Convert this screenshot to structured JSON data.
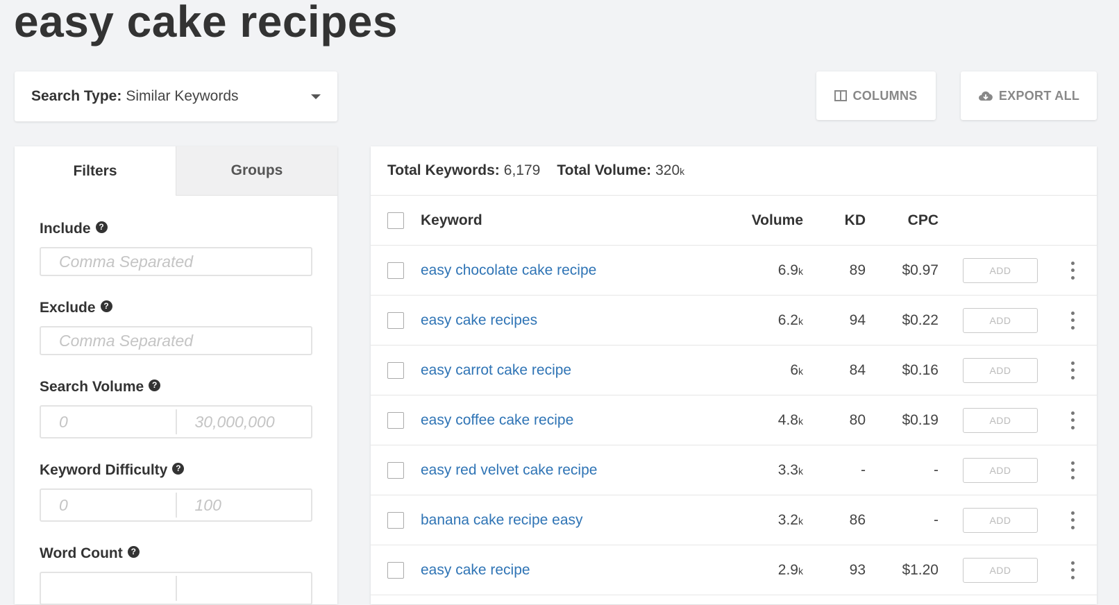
{
  "page": {
    "title": "easy cake recipes"
  },
  "search_type": {
    "label": "Search Type:",
    "value": "Similar Keywords"
  },
  "toolbar": {
    "columns_label": "COLUMNS",
    "export_label": "EXPORT ALL"
  },
  "sidebar": {
    "tabs": [
      {
        "label": "Filters"
      },
      {
        "label": "Groups"
      }
    ],
    "include": {
      "label": "Include",
      "placeholder": "Comma Separated"
    },
    "exclude": {
      "label": "Exclude",
      "placeholder": "Comma Separated"
    },
    "search_volume": {
      "label": "Search Volume",
      "min_placeholder": "0",
      "max_placeholder": "30,000,000"
    },
    "keyword_difficulty": {
      "label": "Keyword Difficulty",
      "min_placeholder": "0",
      "max_placeholder": "100"
    },
    "word_count": {
      "label": "Word Count"
    },
    "help_glyph": "?"
  },
  "summary": {
    "total_keywords_label": "Total Keywords:",
    "total_keywords_value": "6,179",
    "total_volume_label": "Total Volume:",
    "total_volume_value": "320",
    "total_volume_unit": "k"
  },
  "table": {
    "headers": {
      "keyword": "Keyword",
      "volume": "Volume",
      "kd": "KD",
      "cpc": "CPC"
    },
    "add_label": "ADD",
    "rows": [
      {
        "keyword": "easy chocolate cake recipe",
        "volume": "6.9",
        "unit": "k",
        "kd": "89",
        "cpc": "$0.97"
      },
      {
        "keyword": "easy cake recipes",
        "volume": "6.2",
        "unit": "k",
        "kd": "94",
        "cpc": "$0.22"
      },
      {
        "keyword": "easy carrot cake recipe",
        "volume": "6",
        "unit": "k",
        "kd": "84",
        "cpc": "$0.16"
      },
      {
        "keyword": "easy coffee cake recipe",
        "volume": "4.8",
        "unit": "k",
        "kd": "80",
        "cpc": "$0.19"
      },
      {
        "keyword": "easy red velvet cake recipe",
        "volume": "3.3",
        "unit": "k",
        "kd": "-",
        "cpc": "-"
      },
      {
        "keyword": "banana cake recipe easy",
        "volume": "3.2",
        "unit": "k",
        "kd": "86",
        "cpc": "-"
      },
      {
        "keyword": "easy cake recipe",
        "volume": "2.9",
        "unit": "k",
        "kd": "93",
        "cpc": "$1.20"
      }
    ]
  },
  "colors": {
    "link": "#2f74b5",
    "background": "#f2f3f5",
    "text": "#333333"
  },
  "icons": {
    "columns": "columns-icon",
    "export": "cloud-download-icon",
    "caret": "caret-down-icon",
    "more": "more-vertical-icon",
    "help": "help-circle-icon"
  }
}
